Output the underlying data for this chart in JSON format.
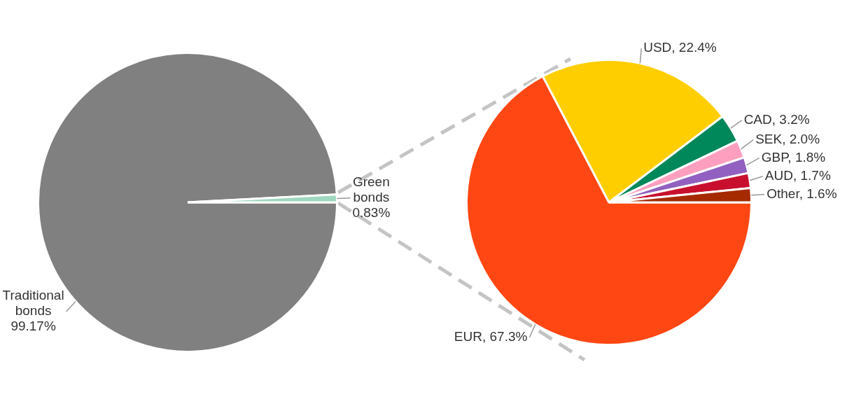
{
  "chart_data": [
    {
      "type": "pie",
      "categories": [
        "Traditional bonds",
        "Green bonds"
      ],
      "values": [
        99.17,
        0.83
      ],
      "colors": [
        "#808080",
        "#9fd8bf"
      ],
      "value_labels": [
        "99.17%",
        "0.83%"
      ]
    },
    {
      "type": "pie",
      "categories": [
        "EUR",
        "USD",
        "CAD",
        "SEK",
        "GBP",
        "AUD",
        "Other"
      ],
      "values": [
        67.3,
        22.4,
        3.2,
        2.0,
        1.8,
        1.7,
        1.6
      ],
      "colors": [
        "#ff4713",
        "#ffce00",
        "#00875a",
        "#ff9fbf",
        "#9160c0",
        "#c8102e",
        "#a52a00"
      ],
      "value_labels": [
        "67.3%",
        "22.4%",
        "3.2%",
        "2.0%",
        "1.8%",
        "1.7%",
        "1.6%"
      ]
    }
  ]
}
